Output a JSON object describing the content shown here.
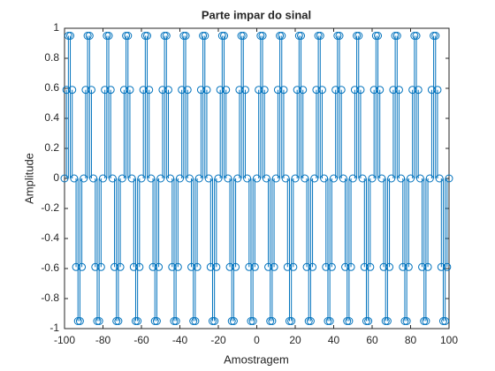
{
  "chart_data": {
    "type": "stem",
    "title": "Parte impar do sinal",
    "xlabel": "Amostragem",
    "ylabel": "Amplitude",
    "x": [
      -100,
      -99,
      -98,
      -97,
      -96,
      -95,
      -94,
      -93,
      -92,
      -91,
      -90,
      -89,
      -88,
      -87,
      -86,
      -85,
      -84,
      -83,
      -82,
      -81,
      -80,
      -79,
      -78,
      -77,
      -76,
      -75,
      -74,
      -73,
      -72,
      -71,
      -70,
      -69,
      -68,
      -67,
      -66,
      -65,
      -64,
      -63,
      -62,
      -61,
      -60,
      -59,
      -58,
      -57,
      -56,
      -55,
      -54,
      -53,
      -52,
      -51,
      -50,
      -49,
      -48,
      -47,
      -46,
      -45,
      -44,
      -43,
      -42,
      -41,
      -40,
      -39,
      -38,
      -37,
      -36,
      -35,
      -34,
      -33,
      -32,
      -31,
      -30,
      -29,
      -28,
      -27,
      -26,
      -25,
      -24,
      -23,
      -22,
      -21,
      -20,
      -19,
      -18,
      -17,
      -16,
      -15,
      -14,
      -13,
      -12,
      -11,
      -10,
      -9,
      -8,
      -7,
      -6,
      -5,
      -4,
      -3,
      -2,
      -1,
      0,
      1,
      2,
      3,
      4,
      5,
      6,
      7,
      8,
      9,
      10,
      11,
      12,
      13,
      14,
      15,
      16,
      17,
      18,
      19,
      20,
      21,
      22,
      23,
      24,
      25,
      26,
      27,
      28,
      29,
      30,
      31,
      32,
      33,
      34,
      35,
      36,
      37,
      38,
      39,
      40,
      41,
      42,
      43,
      44,
      45,
      46,
      47,
      48,
      49,
      50,
      51,
      52,
      53,
      54,
      55,
      56,
      57,
      58,
      59,
      60,
      61,
      62,
      63,
      64,
      65,
      66,
      67,
      68,
      69,
      70,
      71,
      72,
      73,
      74,
      75,
      76,
      77,
      78,
      79,
      80,
      81,
      82,
      83,
      84,
      85,
      86,
      87,
      88,
      89,
      90,
      91,
      92,
      93,
      94,
      95,
      96,
      97,
      98,
      99,
      100
    ],
    "values": [
      0,
      0.59,
      0.95,
      0.95,
      0.59,
      0,
      -0.59,
      -0.95,
      -0.95,
      -0.59,
      0,
      0.59,
      0.95,
      0.95,
      0.59,
      0,
      -0.59,
      -0.95,
      -0.95,
      -0.59,
      0,
      0.59,
      0.95,
      0.95,
      0.59,
      0,
      -0.59,
      -0.95,
      -0.95,
      -0.59,
      0,
      0.59,
      0.95,
      0.95,
      0.59,
      0,
      -0.59,
      -0.95,
      -0.95,
      -0.59,
      0,
      0.59,
      0.95,
      0.95,
      0.59,
      0,
      -0.59,
      -0.95,
      -0.95,
      -0.59,
      0,
      0.59,
      0.95,
      0.95,
      0.59,
      0,
      -0.59,
      -0.95,
      -0.95,
      -0.59,
      0,
      0.59,
      0.95,
      0.95,
      0.59,
      0,
      -0.59,
      -0.95,
      -0.95,
      -0.59,
      0,
      0.59,
      0.95,
      0.95,
      0.59,
      0,
      -0.59,
      -0.95,
      -0.95,
      -0.59,
      0,
      0.59,
      0.95,
      0.95,
      0.59,
      0,
      -0.59,
      -0.95,
      -0.95,
      -0.59,
      0,
      0.59,
      0.95,
      0.95,
      0.59,
      0,
      -0.59,
      -0.95,
      -0.95,
      -0.59,
      0,
      0.59,
      0.95,
      0.95,
      0.59,
      0,
      -0.59,
      -0.95,
      -0.95,
      -0.59,
      0,
      0.59,
      0.95,
      0.95,
      0.59,
      0,
      -0.59,
      -0.95,
      -0.95,
      -0.59,
      0,
      0.59,
      0.95,
      0.95,
      0.59,
      0,
      -0.59,
      -0.95,
      -0.95,
      -0.59,
      0,
      0.59,
      0.95,
      0.95,
      0.59,
      0,
      -0.59,
      -0.95,
      -0.95,
      -0.59,
      0,
      0.59,
      0.95,
      0.95,
      0.59,
      0,
      -0.59,
      -0.95,
      -0.95,
      -0.59,
      0,
      0.59,
      0.95,
      0.95,
      0.59,
      0,
      -0.59,
      -0.95,
      -0.95,
      -0.59,
      0,
      0.59,
      0.95,
      0.95,
      0.59,
      0,
      -0.59,
      -0.95,
      -0.95,
      -0.59,
      0,
      0.59,
      0.95,
      0.95,
      0.59,
      0,
      -0.59,
      -0.95,
      -0.95,
      -0.59,
      0,
      0.59,
      0.95,
      0.95,
      0.59,
      0,
      -0.59,
      -0.95,
      -0.95,
      -0.59,
      0,
      0.59,
      0.95,
      0.95,
      0.59,
      0,
      -0.59,
      -0.95,
      -0.95,
      -0.59,
      0
    ],
    "color": "#0072bd",
    "xlim": [
      -100,
      100
    ],
    "xticks": [
      -100,
      -80,
      -60,
      -40,
      -20,
      0,
      20,
      40,
      60,
      80,
      100
    ],
    "ylim": [
      -1,
      1
    ],
    "yticks": [
      -1,
      -0.8,
      -0.6,
      -0.4,
      -0.2,
      0,
      0.2,
      0.4,
      0.6,
      0.8,
      1
    ]
  }
}
